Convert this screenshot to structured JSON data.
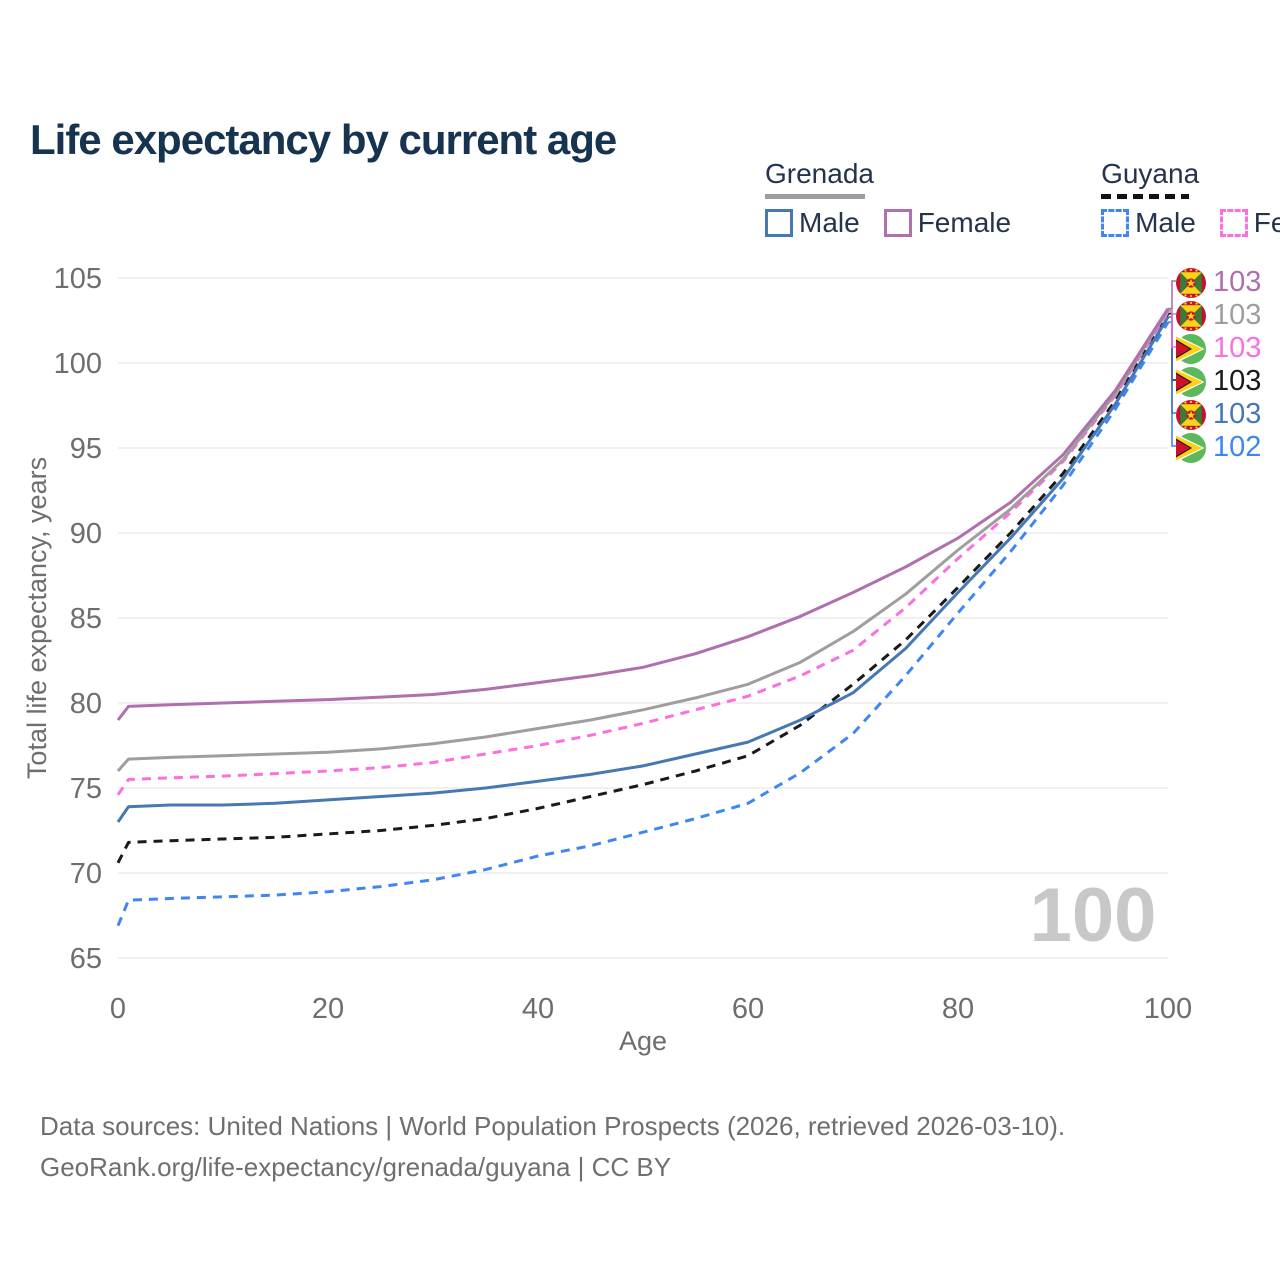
{
  "title": "Life expectancy by current age",
  "watermark": "100",
  "legend": {
    "groups": [
      {
        "label": "Grenada",
        "line_style": "solid",
        "items": [
          {
            "label": "Male",
            "color": "#4678b4",
            "style": "solid"
          },
          {
            "label": "Female",
            "color": "#b06fad",
            "style": "solid"
          }
        ]
      },
      {
        "label": "Guyana",
        "line_style": "dashed",
        "items": [
          {
            "label": "Male",
            "color": "#3f86f5",
            "style": "dashed"
          },
          {
            "label": "Female",
            "color": "#fb6fe0",
            "style": "dashed"
          }
        ]
      }
    ]
  },
  "chart_data": {
    "type": "line",
    "title": "Life expectancy by current age",
    "xlabel": "Age",
    "ylabel": "Total life expectancy, years",
    "xlim": [
      0,
      100
    ],
    "ylim": [
      65,
      105
    ],
    "xticks": [
      0,
      20,
      40,
      60,
      80,
      100
    ],
    "yticks": [
      65,
      70,
      75,
      80,
      85,
      90,
      95,
      100,
      105
    ],
    "grid": "horizontal",
    "legend_position": "top-right",
    "x": [
      0,
      1,
      5,
      10,
      15,
      20,
      25,
      30,
      35,
      40,
      45,
      50,
      55,
      60,
      65,
      70,
      75,
      80,
      85,
      90,
      95,
      100
    ],
    "series": [
      {
        "name": "Guyana Male",
        "country": "Guyana",
        "sex": "Male",
        "color": "#3f86f5",
        "dash": true,
        "values": [
          66.9,
          68.4,
          68.5,
          68.6,
          68.7,
          68.9,
          69.2,
          69.6,
          70.2,
          71.0,
          71.6,
          72.4,
          73.2,
          74.1,
          75.9,
          78.2,
          81.6,
          85.3,
          88.9,
          92.8,
          97.3,
          102.4
        ],
        "end_label": "102",
        "label_slot": 5
      },
      {
        "name": "Guyana Both sexes",
        "country": "Guyana",
        "sex": "Both",
        "color": "#1a1a1a",
        "dash": true,
        "values": [
          70.6,
          71.8,
          71.9,
          72.0,
          72.1,
          72.3,
          72.5,
          72.8,
          73.2,
          73.8,
          74.5,
          75.2,
          76.0,
          76.9,
          78.7,
          81.1,
          83.7,
          86.8,
          90.0,
          93.5,
          97.8,
          102.9
        ],
        "end_label": "103",
        "label_slot": 3
      },
      {
        "name": "Grenada Male",
        "country": "Grenada",
        "sex": "Male",
        "color": "#4678b4",
        "dash": false,
        "values": [
          73.0,
          73.9,
          74.0,
          74.0,
          74.1,
          74.3,
          74.5,
          74.7,
          75.0,
          75.4,
          75.8,
          76.3,
          77.0,
          77.7,
          79.0,
          80.6,
          83.2,
          86.5,
          89.7,
          93.2,
          97.6,
          102.7
        ],
        "end_label": "103",
        "label_slot": 4
      },
      {
        "name": "Guyana Female",
        "country": "Guyana",
        "sex": "Female",
        "color": "#fb6fe0",
        "dash": true,
        "values": [
          74.6,
          75.5,
          75.6,
          75.7,
          75.85,
          76.0,
          76.2,
          76.5,
          77.0,
          77.5,
          78.1,
          78.8,
          79.6,
          80.4,
          81.6,
          83.1,
          85.6,
          88.5,
          91.2,
          94.2,
          98.1,
          103.0
        ],
        "end_label": "103",
        "label_slot": 2
      },
      {
        "name": "Grenada Both sexes",
        "country": "Grenada",
        "sex": "Both",
        "color": "#9e9e9e",
        "dash": false,
        "values": [
          76.0,
          76.7,
          76.8,
          76.9,
          77.0,
          77.1,
          77.3,
          77.6,
          78.0,
          78.5,
          79.0,
          79.6,
          80.3,
          81.1,
          82.4,
          84.2,
          86.4,
          89.0,
          91.4,
          94.3,
          98.2,
          103.1
        ],
        "end_label": "103",
        "label_slot": 1
      },
      {
        "name": "Grenada Female",
        "country": "Grenada",
        "sex": "Female",
        "color": "#b06fad",
        "dash": false,
        "values": [
          79.0,
          79.8,
          79.9,
          80.0,
          80.1,
          80.2,
          80.35,
          80.5,
          80.8,
          81.2,
          81.6,
          82.1,
          82.9,
          83.9,
          85.1,
          86.5,
          88.0,
          89.7,
          91.8,
          94.6,
          98.4,
          103.2
        ],
        "end_label": "103",
        "label_slot": 0
      }
    ]
  },
  "end_labels": [
    {
      "flag": "grenada",
      "value": "103",
      "series": "Grenada Female",
      "color": "#b06fad"
    },
    {
      "flag": "grenada",
      "value": "103",
      "series": "Grenada Both sexes",
      "color": "#9e9e9e"
    },
    {
      "flag": "guyana",
      "value": "103",
      "series": "Guyana Female",
      "color": "#fb6fe0"
    },
    {
      "flag": "guyana",
      "value": "103",
      "series": "Guyana Both sexes",
      "color": "#1a1a1a"
    },
    {
      "flag": "grenada",
      "value": "103",
      "series": "Grenada Male",
      "color": "#4678b4"
    },
    {
      "flag": "guyana",
      "value": "102",
      "series": "Guyana Male",
      "color": "#3f86f5"
    }
  ],
  "footer": {
    "line1": "Data sources: United Nations | World Population Prospects (2026, retrieved 2026-03-10).",
    "line2": "GeoRank.org/life-expectancy/grenada/guyana | CC BY"
  },
  "colors": {
    "title": "#16334f",
    "axis_text": "#6e6e6e",
    "gridline": "#ececec",
    "watermark": "#c8c8c8",
    "grenada_male": "#4678b4",
    "grenada_female": "#b06fad",
    "grenada_both": "#9e9e9e",
    "guyana_male": "#3f86f5",
    "guyana_female": "#fb6fe0",
    "guyana_both": "#1a1a1a"
  }
}
